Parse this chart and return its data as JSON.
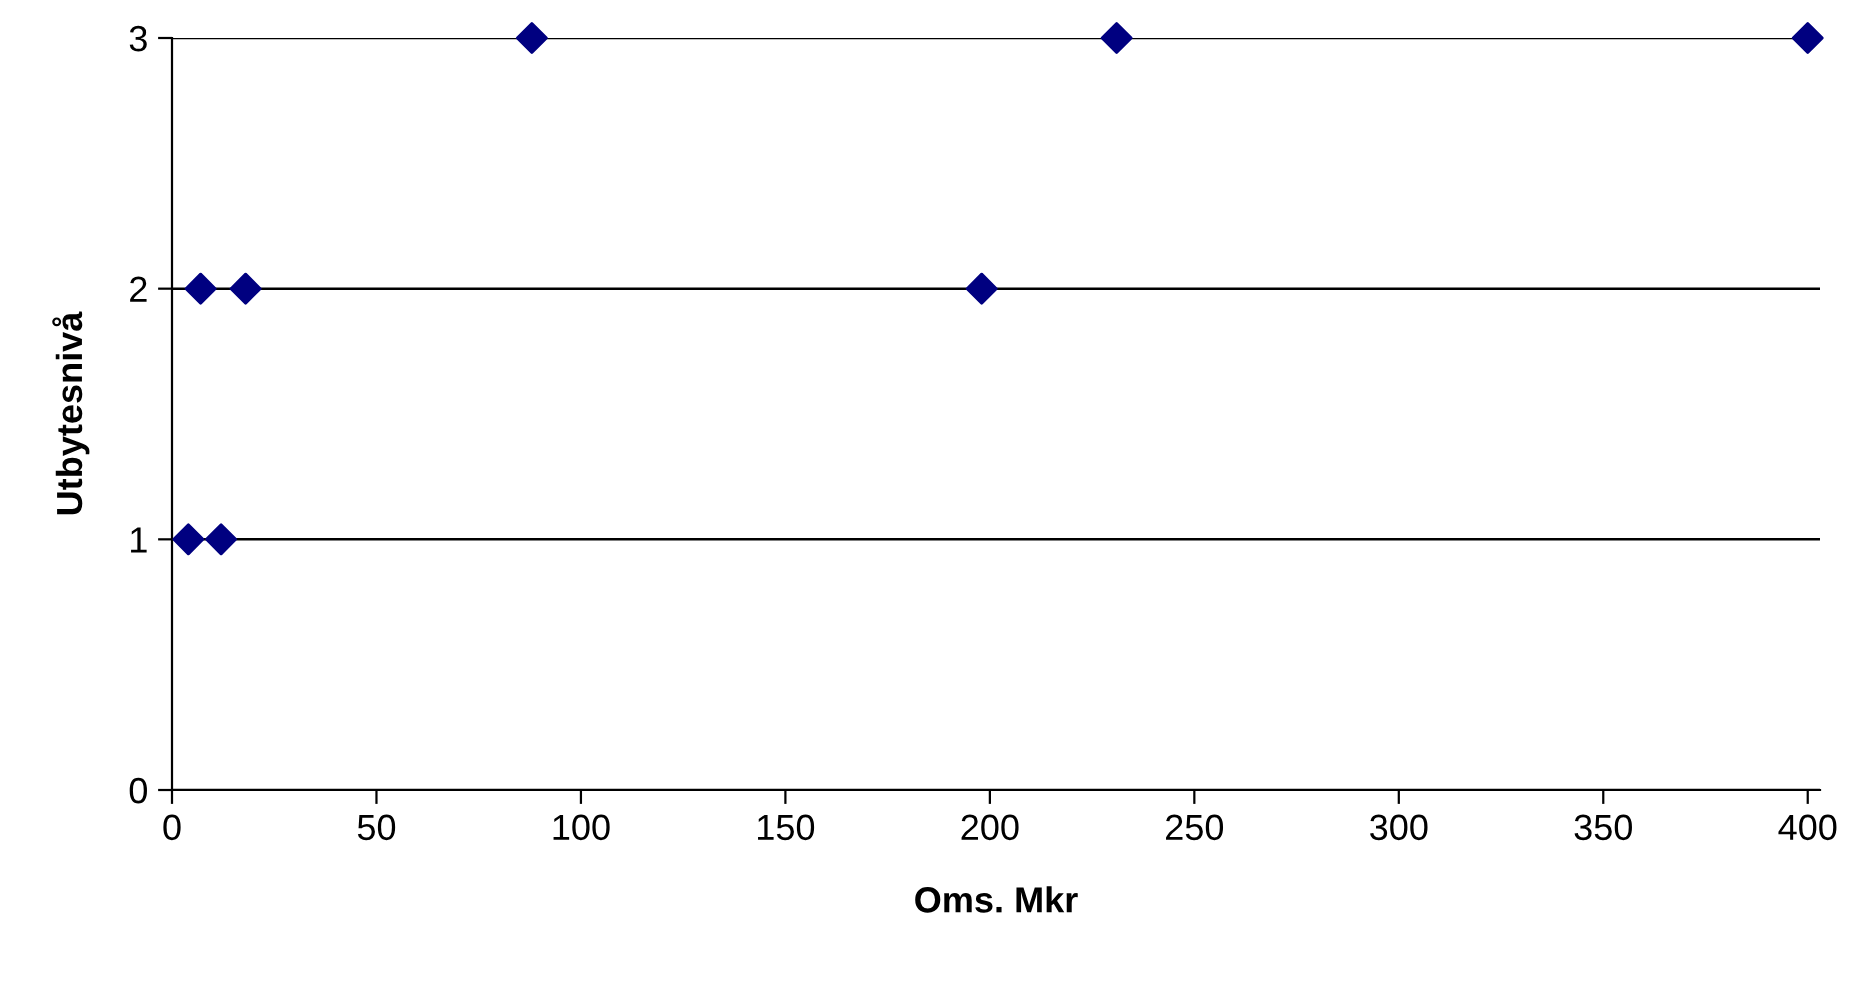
{
  "chart_data": {
    "type": "scatter",
    "xlabel": "Oms. Mkr",
    "ylabel": "Utbytesnivå",
    "x": [
      4,
      12,
      7,
      18,
      88,
      198,
      231,
      400
    ],
    "values": [
      1,
      1,
      2,
      2,
      3,
      2,
      3,
      3
    ],
    "color": "#000080",
    "marker": "diamond",
    "xlim": [
      0,
      403
    ],
    "ylim": [
      0,
      3
    ],
    "xticks": [
      0,
      50,
      100,
      150,
      200,
      250,
      300,
      350,
      400
    ],
    "yticks": [
      0,
      1,
      2,
      3
    ],
    "grid": "y"
  }
}
